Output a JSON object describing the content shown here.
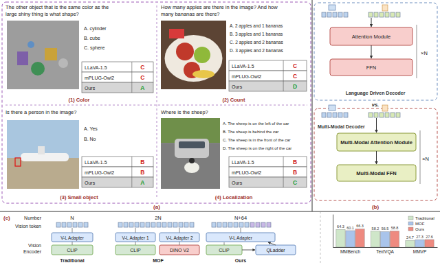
{
  "panel_a": {
    "label": "(a)",
    "cases": [
      {
        "question": [
          "The other object that is the same color as the",
          "large shiny thing is what shape?"
        ],
        "options": [
          "A. cylinder",
          "B. cube",
          "C. sphere"
        ],
        "answers": [
          [
            "LLaVA-1.5",
            "C"
          ],
          [
            "mPLUG-Owl2",
            "C"
          ],
          [
            "Ours",
            "A"
          ]
        ],
        "caption": "(1) Color"
      },
      {
        "question": [
          "How many apples are there in the image? And how",
          "many bananas are there?"
        ],
        "options": [
          "A. 2 apples and 1 bananas",
          "B. 3 apples and 1 bananas",
          "C. 2 apples and 2 bananas",
          "D. 3 apples and 2 bananas"
        ],
        "answers": [
          [
            "LLaVA-1.5",
            "C"
          ],
          [
            "mPLUG-Owl2",
            "C"
          ],
          [
            "Ours",
            "D"
          ]
        ],
        "caption": "(2) Count"
      },
      {
        "question": [
          "Is there a person in the image?"
        ],
        "options": [
          "A. Yes",
          "B. No"
        ],
        "answers": [
          [
            "LLaVA-1.5",
            "B"
          ],
          [
            "mPLUG-Owl2",
            "B"
          ],
          [
            "Ours",
            "A"
          ]
        ],
        "caption": "(3) Small object"
      },
      {
        "question": [
          "Where is the sheep?"
        ],
        "options": [
          "A. The sheep is on the left of the car",
          "B. The sheep is behind the car",
          "C. The sheep is in the front of the car",
          "D. The sheep is on the right of the car"
        ],
        "answers": [
          [
            "LLaVA-1.5",
            "B"
          ],
          [
            "mPLUG-Owl2",
            "B"
          ],
          [
            "Ours",
            "C"
          ]
        ],
        "caption": "(4) Localization"
      }
    ]
  },
  "panel_b": {
    "label": "(b)",
    "vs": "vs.",
    "decoders": [
      {
        "name": "Language Driven Decoder",
        "modules": [
          "Attention Module",
          "FFN"
        ],
        "repeat": "×N"
      },
      {
        "name": "Multi-Modal Decoder",
        "modules": [
          "Multi-Modal Attention Module",
          "Multi-Modal FFN"
        ],
        "repeat": "×N"
      }
    ]
  },
  "panel_c": {
    "label": "(c)",
    "row_labels": {
      "number": "Number",
      "vision_token": "Vision token",
      "vision_encoder": [
        "Vision",
        "Encoder"
      ]
    },
    "columns": [
      {
        "name": "Traditional",
        "number": "N",
        "adapters": [
          "V-L Adapter"
        ],
        "encoders": [
          "CLIP"
        ]
      },
      {
        "name": "MOF",
        "number": "2N",
        "adapters": [
          "V-L Adapter 1",
          "V-L Adapter 2"
        ],
        "encoders": [
          "CLIP",
          "DINO V2"
        ]
      },
      {
        "name": "Ours",
        "number": "N+64",
        "adapters": [
          "V-L Adapter"
        ],
        "encoders": [
          "CLIP",
          "QLadder"
        ]
      }
    ]
  },
  "chart_data": {
    "type": "bar",
    "categories": [
      "MMBench",
      "TextVQA",
      "MMVP"
    ],
    "series": [
      {
        "name": "Traditional",
        "color": "#cfe6c9",
        "values": [
          64.3,
          58.2,
          24.7
        ]
      },
      {
        "name": "MOF",
        "color": "#a9c4eb",
        "values": [
          60.1,
          56.5,
          27.3
        ]
      },
      {
        "name": "Ours",
        "color": "#ee8a80",
        "values": [
          66.3,
          58.8,
          27.6
        ]
      }
    ],
    "ylim": [
      0,
      120
    ],
    "yticks": [],
    "data_labels": true,
    "tick_labels": "x",
    "legend": "upper right",
    "grid": false
  }
}
